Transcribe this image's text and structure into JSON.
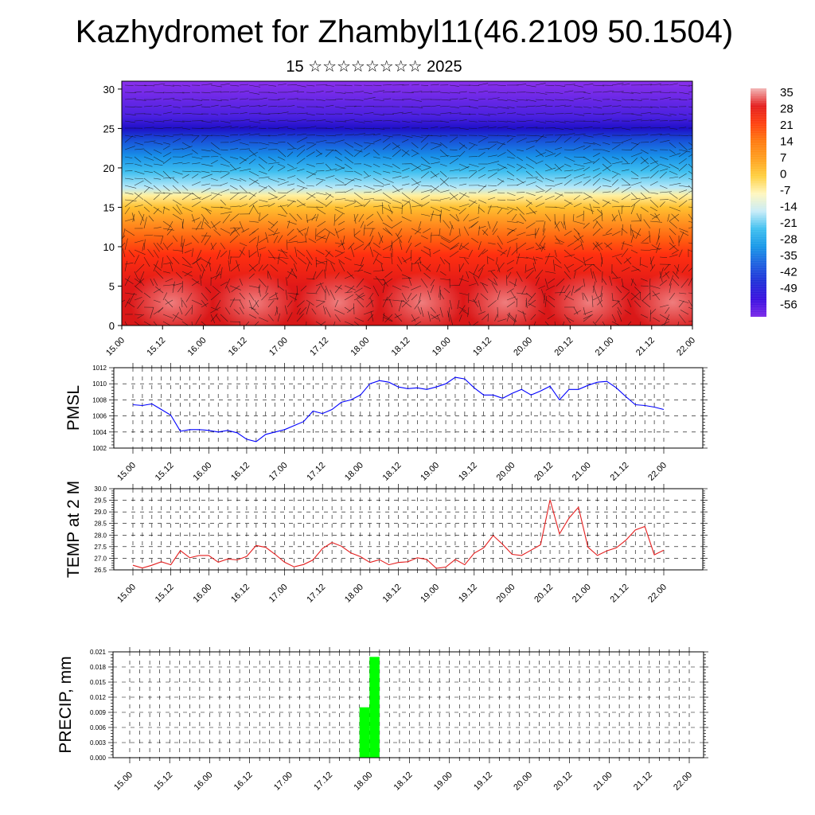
{
  "title": "Kazhydromet for Zhambyl11(46.2109 50.1504)",
  "subtitle": "15 ☆☆☆☆☆☆☆☆ 2025",
  "chart_data": [
    {
      "type": "heatmap",
      "title": "",
      "ylim": [
        0,
        31
      ],
      "yticks": [
        "0",
        "5",
        "10",
        "15",
        "20",
        "25",
        "30"
      ],
      "xticks": [
        "15.00",
        "15.12",
        "16.00",
        "16.12",
        "17.00",
        "17.12",
        "18.00",
        "18.12",
        "19.00",
        "19.12",
        "20.00",
        "20.12",
        "21.00",
        "21.12",
        "22.00"
      ],
      "colorbar_labels": [
        "35",
        "28",
        "21",
        "14",
        "7",
        "0",
        "-7",
        "-14",
        "-21",
        "-28",
        "-35",
        "-42",
        "-49",
        "-56"
      ],
      "colorbar_colors": [
        "#f2b6b6",
        "#e41e1e",
        "#ff4010",
        "#ff7a10",
        "#ffa020",
        "#ffd040",
        "#fff7c0",
        "#c8ecf8",
        "#40c0f0",
        "#1898e8",
        "#1e60e0",
        "#2030d8",
        "#3a10e0",
        "#7a28e8"
      ],
      "color_by_height": [
        [
          0,
          "#d81818"
        ],
        [
          5,
          "#e01818"
        ],
        [
          9,
          "#ff3010"
        ],
        [
          11,
          "#ff6010"
        ],
        [
          13,
          "#ff9020"
        ],
        [
          15,
          "#ffc030"
        ],
        [
          16.5,
          "#fff0a0"
        ],
        [
          17.5,
          "#b8e8f8"
        ],
        [
          19.5,
          "#40c0f0"
        ],
        [
          21.5,
          "#1890e8"
        ],
        [
          23.5,
          "#1850d8"
        ],
        [
          25,
          "#1e10c8"
        ],
        [
          26.5,
          "#4a20e0"
        ],
        [
          31,
          "#8a30ec"
        ]
      ]
    },
    {
      "type": "line",
      "ylabel": "PMSL",
      "ylim": [
        1002,
        1012
      ],
      "yticks": [
        "1002",
        "1004",
        "1006",
        "1008",
        "1010",
        "1012"
      ],
      "xticks": [
        "15.00",
        "15.12",
        "16.00",
        "16.12",
        "17.00",
        "17.12",
        "18.00",
        "18.12",
        "19.00",
        "19.12",
        "20.00",
        "20.12",
        "21.00",
        "21.12",
        "22.00"
      ],
      "series": [
        {
          "color": "#0000ff",
          "x": [
            0,
            3,
            6,
            9,
            12,
            15,
            18,
            21,
            24,
            27,
            30,
            33,
            36,
            39,
            42,
            45,
            48,
            51,
            54,
            57,
            60,
            63,
            66,
            69,
            72,
            75,
            78,
            81,
            84,
            87,
            90,
            93,
            96,
            99,
            102,
            105,
            108,
            111,
            114,
            117,
            120,
            123,
            126,
            129,
            132,
            135,
            138,
            141,
            144,
            147,
            150,
            153,
            156,
            159,
            162,
            165,
            168
          ],
          "values": [
            1007.4,
            1007.3,
            1007.5,
            1006.8,
            1006.1,
            1004.1,
            1004.3,
            1004.3,
            1004.2,
            1004.0,
            1004.2,
            1003.9,
            1003.1,
            1002.8,
            1003.7,
            1004.0,
            1004.3,
            1004.8,
            1005.3,
            1006.6,
            1006.3,
            1006.8,
            1007.7,
            1008.0,
            1008.6,
            1010.0,
            1010.4,
            1010.2,
            1009.6,
            1009.4,
            1009.5,
            1009.3,
            1009.6,
            1010.0,
            1010.8,
            1010.6,
            1009.5,
            1008.6,
            1008.6,
            1008.2,
            1008.8,
            1009.3,
            1008.6,
            1009.1,
            1009.7,
            1008.0,
            1009.3,
            1009.3,
            1009.8,
            1010.2,
            1010.3,
            1009.5,
            1008.4,
            1007.4,
            1007.3,
            1007.1,
            1006.8
          ]
        }
      ]
    },
    {
      "type": "line",
      "ylabel": "TEMP at 2 M",
      "ylim": [
        26.5,
        30.0
      ],
      "yticks": [
        "26.5",
        "27.0",
        "27.5",
        "28.0",
        "28.5",
        "29.0",
        "29.5",
        "30.0"
      ],
      "xticks": [
        "15.00",
        "15.12",
        "16.00",
        "16.12",
        "17.00",
        "17.12",
        "18.00",
        "18.12",
        "19.00",
        "19.12",
        "20.00",
        "20.12",
        "21.00",
        "21.12",
        "22.00"
      ],
      "series": [
        {
          "color": "#e41e1e",
          "x": [
            0,
            3,
            6,
            9,
            12,
            15,
            18,
            21,
            24,
            27,
            30,
            33,
            36,
            39,
            42,
            45,
            48,
            51,
            54,
            57,
            60,
            63,
            66,
            69,
            72,
            75,
            78,
            81,
            84,
            87,
            90,
            93,
            96,
            99,
            102,
            105,
            108,
            111,
            114,
            117,
            120,
            123,
            126,
            129,
            132,
            135,
            138,
            141,
            144,
            147,
            150,
            153,
            156,
            159,
            162,
            165,
            168
          ],
          "values": [
            26.7,
            26.58,
            26.7,
            26.85,
            26.72,
            27.33,
            27.02,
            27.12,
            27.12,
            26.83,
            26.97,
            26.93,
            27.08,
            27.55,
            27.47,
            27.17,
            26.83,
            26.63,
            26.73,
            26.93,
            27.42,
            27.68,
            27.52,
            27.23,
            27.07,
            26.82,
            26.94,
            26.72,
            26.82,
            26.85,
            27.02,
            26.95,
            26.57,
            26.62,
            26.95,
            26.72,
            27.22,
            27.45,
            27.98,
            27.6,
            27.17,
            27.12,
            27.35,
            27.58,
            29.52,
            28.05,
            28.73,
            29.2,
            27.48,
            27.12,
            27.32,
            27.45,
            27.78,
            28.22,
            28.37,
            27.15,
            27.35
          ]
        }
      ]
    },
    {
      "type": "bar",
      "ylabel": "PRECIP, mm",
      "ylim": [
        0,
        0.021
      ],
      "yticks": [
        "0.000",
        "0.003",
        "0.006",
        "0.009",
        "0.012",
        "0.015",
        "0.018",
        "0.021"
      ],
      "xticks": [
        "15.00",
        "15.12",
        "16.00",
        "16.12",
        "17.00",
        "17.12",
        "18.00",
        "18.12",
        "19.00",
        "19.12",
        "20.00",
        "20.12",
        "21.00",
        "21.12",
        "22.00"
      ],
      "series": [
        {
          "color": "#00ff00",
          "bars": [
            {
              "x0": 69,
              "x1": 72,
              "value": 0.01
            },
            {
              "x0": 72,
              "x1": 75,
              "value": 0.02
            }
          ]
        }
      ]
    }
  ]
}
